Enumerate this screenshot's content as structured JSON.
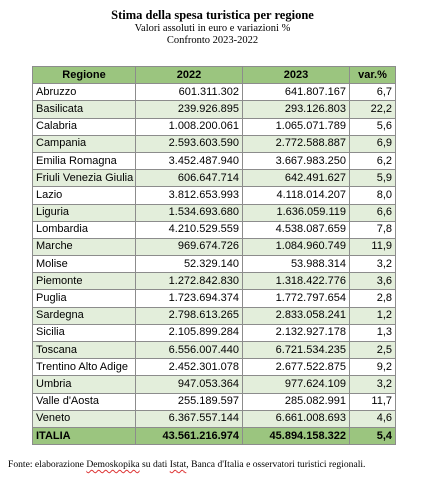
{
  "title": "Stima della spesa turistica per regione",
  "subtitle_line1": "Valori assoluti in euro e variazioni %",
  "subtitle_line2": "Confronto 2023-2022",
  "table": {
    "headers": [
      "Regione",
      "2022",
      "2023",
      "var.%"
    ],
    "rows": [
      [
        "Abruzzo",
        "601.311.302",
        "641.807.167",
        "6,7"
      ],
      [
        "Basilicata",
        "239.926.895",
        "293.126.803",
        "22,2"
      ],
      [
        "Calabria",
        "1.008.200.061",
        "1.065.071.789",
        "5,6"
      ],
      [
        "Campania",
        "2.593.603.590",
        "2.772.588.887",
        "6,9"
      ],
      [
        "Emilia Romagna",
        "3.452.487.940",
        "3.667.983.250",
        "6,2"
      ],
      [
        "Friuli Venezia Giulia",
        "606.647.714",
        "642.491.627",
        "5,9"
      ],
      [
        "Lazio",
        "3.812.653.993",
        "4.118.014.207",
        "8,0"
      ],
      [
        "Liguria",
        "1.534.693.680",
        "1.636.059.119",
        "6,6"
      ],
      [
        "Lombardia",
        "4.210.529.559",
        "4.538.087.659",
        "7,8"
      ],
      [
        "Marche",
        "969.674.726",
        "1.084.960.749",
        "11,9"
      ],
      [
        "Molise",
        "52.329.140",
        "53.988.314",
        "3,2"
      ],
      [
        "Piemonte",
        "1.272.842.830",
        "1.318.422.776",
        "3,6"
      ],
      [
        "Puglia",
        "1.723.694.374",
        "1.772.797.654",
        "2,8"
      ],
      [
        "Sardegna",
        "2.798.613.265",
        "2.833.058.241",
        "1,2"
      ],
      [
        "Sicilia",
        "2.105.899.284",
        "2.132.927.178",
        "1,3"
      ],
      [
        "Toscana",
        "6.556.007.440",
        "6.721.534.235",
        "2,5"
      ],
      [
        "Trentino Alto Adige",
        "2.452.301.078",
        "2.677.522.875",
        "9,2"
      ],
      [
        "Umbria",
        "947.053.364",
        "977.624.109",
        "3,2"
      ],
      [
        "Valle d'Aosta",
        "255.189.597",
        "285.082.991",
        "11,7"
      ],
      [
        "Veneto",
        "6.367.557.144",
        "6.661.008.693",
        "4,6"
      ]
    ],
    "total": [
      "ITALIA",
      "43.561.216.974",
      "45.894.158.322",
      "5,4"
    ]
  },
  "footer": {
    "prefix": "Fonte: elaborazione ",
    "demoskopika": "Demoskopika",
    "middle": " su dati ",
    "istat": "Istat",
    "suffix": ", Banca d'Italia e osservatori turistici regionali."
  },
  "colors": {
    "header_green": "#9bc57f",
    "row_alt_green": "#e3eedb",
    "grid": "#8c8c8c"
  }
}
